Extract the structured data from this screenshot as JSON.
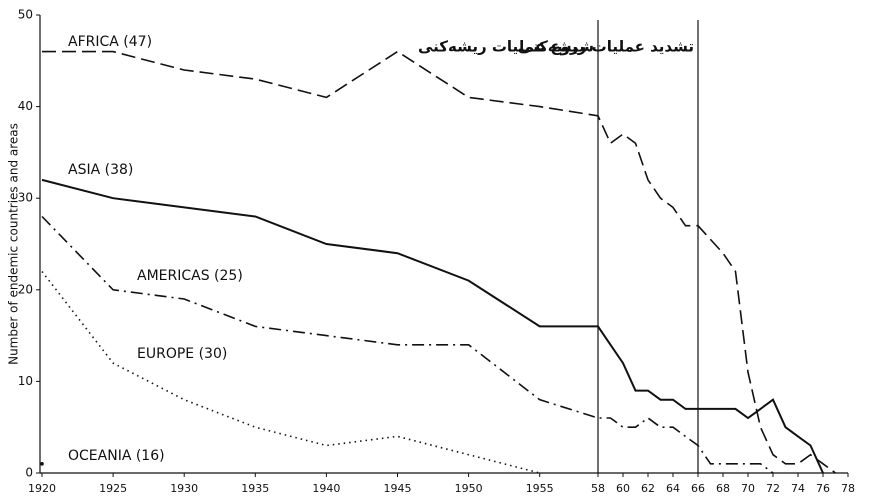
{
  "chart_data": {
    "type": "line",
    "ylabel": "Number of endemic countries and areas",
    "xlim": [
      1920,
      1978
    ],
    "ylim": [
      0,
      50
    ],
    "yticks": [
      0,
      10,
      20,
      30,
      40,
      50
    ],
    "xticks": [
      1920,
      1925,
      1930,
      1935,
      1940,
      1945,
      1950,
      1955,
      {
        "value": 1958,
        "label": "58"
      },
      {
        "value": 1960,
        "label": "60"
      },
      {
        "value": 1962,
        "label": "62"
      },
      {
        "value": 1964,
        "label": "64"
      },
      {
        "value": 1966,
        "label": "66"
      },
      {
        "value": 1968,
        "label": "68"
      },
      {
        "value": 1970,
        "label": "70"
      },
      {
        "value": 1972,
        "label": "72"
      },
      {
        "value": 1974,
        "label": "74"
      },
      {
        "value": 1976,
        "label": "76"
      },
      {
        "value": 1978,
        "label": "78"
      }
    ],
    "color": "#111111",
    "series": [
      {
        "name": "AFRICA (47)",
        "style": "dashed",
        "x": [
          1920,
          1925,
          1930,
          1935,
          1940,
          1945,
          1950,
          1955,
          1958,
          1959,
          1960,
          1961,
          1962,
          1963,
          1964,
          1965,
          1966,
          1968,
          1969,
          1970,
          1971,
          1972,
          1973,
          1974,
          1975,
          1976,
          1977
        ],
        "values": [
          46,
          46,
          44,
          43,
          41,
          46,
          41,
          40,
          39,
          36,
          37,
          36,
          32,
          30,
          29,
          27,
          27,
          24,
          22,
          11,
          5,
          2,
          1,
          1,
          2,
          1,
          0
        ]
      },
      {
        "name": "ASIA (38)",
        "style": "solid",
        "x": [
          1920,
          1925,
          1930,
          1935,
          1940,
          1945,
          1950,
          1955,
          1958,
          1959,
          1960,
          1961,
          1962,
          1963,
          1964,
          1965,
          1966,
          1967,
          1968,
          1969,
          1970,
          1971,
          1972,
          1973,
          1974,
          1975,
          1976
        ],
        "values": [
          32,
          30,
          29,
          28,
          25,
          24,
          21,
          16,
          16,
          14,
          12,
          9,
          9,
          8,
          8,
          7,
          7,
          7,
          7,
          7,
          6,
          7,
          8,
          5,
          4,
          3,
          0
        ]
      },
      {
        "name": "AMERICAS (25)",
        "style": "dashdot",
        "x": [
          1920,
          1925,
          1930,
          1935,
          1940,
          1945,
          1950,
          1955,
          1958,
          1959,
          1960,
          1961,
          1962,
          1963,
          1964,
          1965,
          1966,
          1967,
          1968,
          1969,
          1970,
          1971,
          1972
        ],
        "values": [
          28,
          20,
          19,
          16,
          15,
          14,
          14,
          8,
          6,
          6,
          5,
          5,
          6,
          5,
          5,
          4,
          3,
          1,
          1,
          1,
          1,
          1,
          0
        ]
      },
      {
        "name": "EUROPE (30)",
        "style": "dotted",
        "x": [
          1920,
          1925,
          1930,
          1935,
          1940,
          1945,
          1950,
          1955
        ],
        "values": [
          22,
          12,
          8,
          5,
          3,
          4,
          2,
          0
        ]
      },
      {
        "name": "OCEANIA (16)",
        "style": "point",
        "x": [
          1920
        ],
        "values": [
          1
        ]
      }
    ],
    "annotations": [
      {
        "text": "شروع عملیات ریشه‌کنی",
        "x": 1958
      },
      {
        "text": "تشدید عملیات ریشه‌کنی",
        "x": 1966
      }
    ]
  }
}
